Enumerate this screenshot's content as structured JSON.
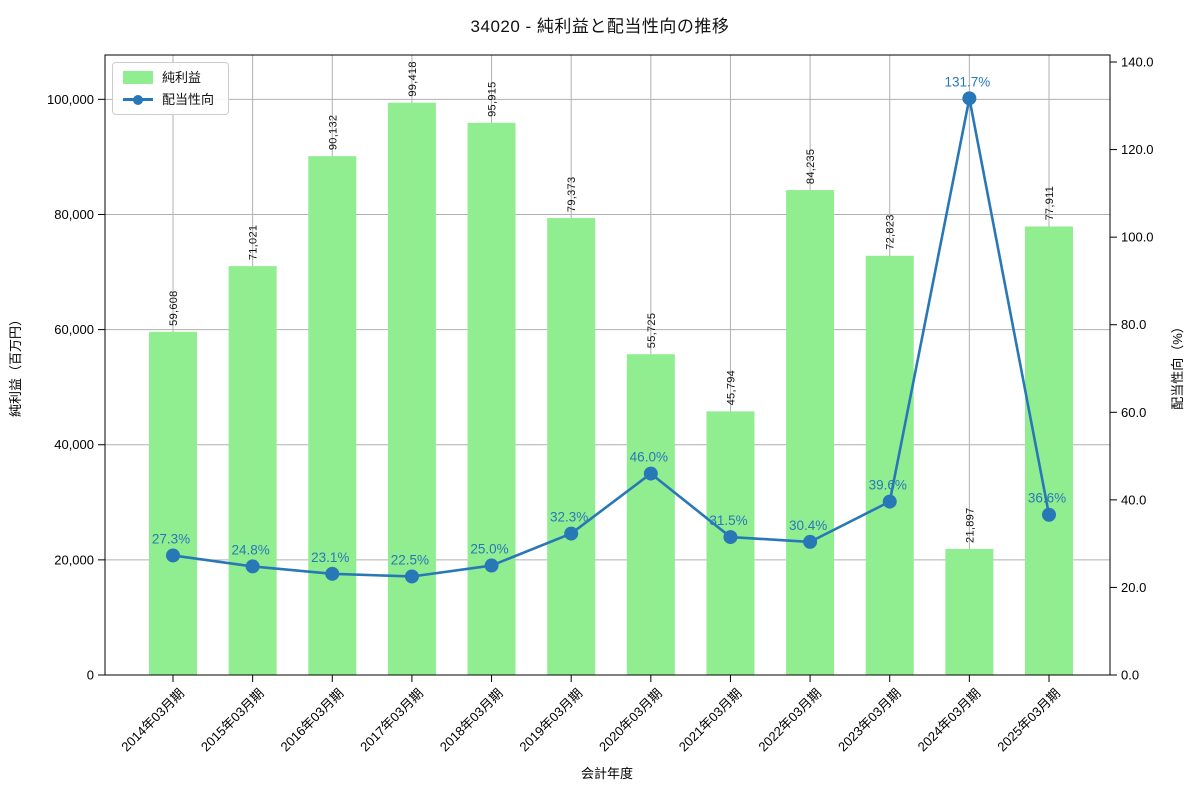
{
  "title": "34020 - 純利益と配当性向の推移",
  "chart_data": {
    "type": "bar+line",
    "title": "34020 - 純利益と配当性向の推移",
    "xlabel": "会計年度",
    "categories": [
      "2014年03月期",
      "2015年03月期",
      "2016年03月期",
      "2017年03月期",
      "2018年03月期",
      "2019年03月期",
      "2020年03月期",
      "2021年03月期",
      "2022年03月期",
      "2023年03月期",
      "2024年03月期",
      "2025年03月期"
    ],
    "bar_series": {
      "name": "純利益",
      "axis": "left",
      "ylabel": "純利益（百万円）",
      "values": [
        59608,
        71021,
        90132,
        99418,
        95915,
        79373,
        55725,
        45794,
        84235,
        72823,
        21897,
        77911
      ],
      "labels": [
        "59,608",
        "71,021",
        "90,132",
        "99,418",
        "95,915",
        "79,373",
        "55,725",
        "45,794",
        "84,235",
        "72,823",
        "21,897",
        "77,911"
      ],
      "ylim": [
        0,
        107700
      ],
      "yticks": [
        {
          "v": 0,
          "t": "0"
        },
        {
          "v": 20000,
          "t": "20,000"
        },
        {
          "v": 40000,
          "t": "40,000"
        },
        {
          "v": 60000,
          "t": "60,000"
        },
        {
          "v": 80000,
          "t": "80,000"
        },
        {
          "v": 100000,
          "t": "100,000"
        }
      ]
    },
    "line_series": {
      "name": "配当性向",
      "axis": "right",
      "ylabel": "配当性向（%）",
      "values": [
        27.3,
        24.8,
        23.1,
        22.5,
        25.0,
        32.3,
        46.0,
        31.5,
        30.4,
        39.6,
        131.7,
        36.6
      ],
      "labels": [
        "27.3%",
        "24.8%",
        "23.1%",
        "22.5%",
        "25.0%",
        "32.3%",
        "46.0%",
        "31.5%",
        "30.4%",
        "39.6%",
        "131.7%",
        "36.6%"
      ],
      "ylim": [
        0,
        141.6
      ],
      "yticks": [
        {
          "v": 0,
          "t": "0.0"
        },
        {
          "v": 20,
          "t": "20.0"
        },
        {
          "v": 40,
          "t": "40.0"
        },
        {
          "v": 60,
          "t": "60.0"
        },
        {
          "v": 80,
          "t": "80.0"
        },
        {
          "v": 100,
          "t": "100.0"
        },
        {
          "v": 120,
          "t": "120.0"
        },
        {
          "v": 140,
          "t": "140.0"
        }
      ]
    },
    "legend": {
      "position": "upper left",
      "items": [
        "純利益",
        "配当性向"
      ]
    },
    "grid": true,
    "colors": {
      "bar": "#90ee90",
      "line": "#2878b8",
      "grid": "#b0b0b0",
      "spine": "#000000",
      "background": "#ffffff"
    }
  }
}
